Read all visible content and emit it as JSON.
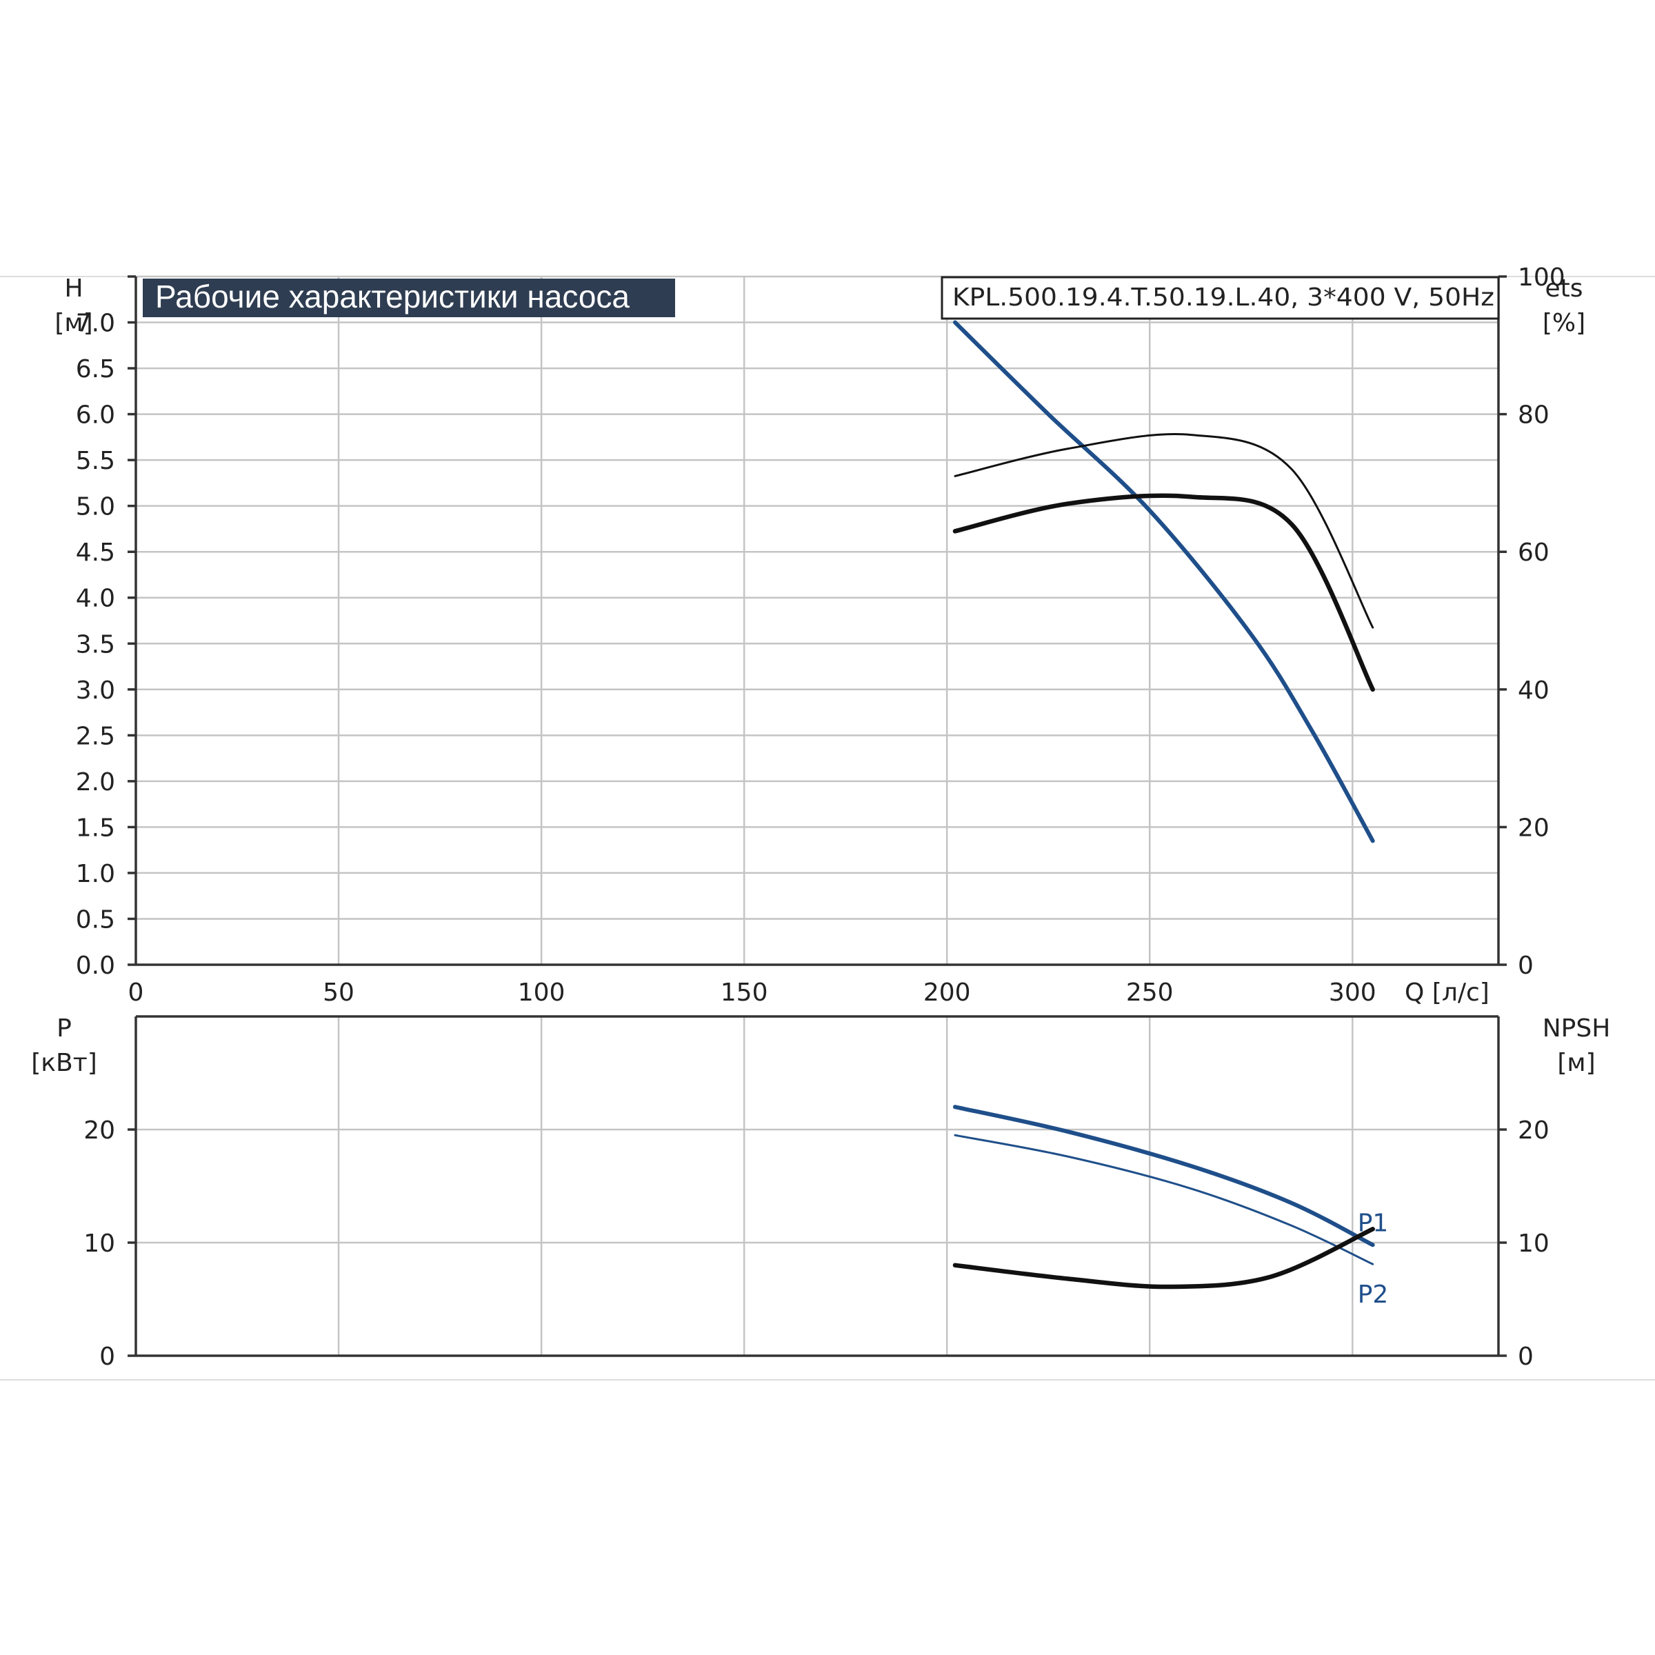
{
  "header": {
    "title": "Рабочие характеристики насоса",
    "model": "KPL.500.19.4.T.50.19.L.40, 3*400 V, 50Hz"
  },
  "colors": {
    "blue": "#1f4f8a",
    "black": "#111111",
    "title_bg": "#2f3d52"
  },
  "chart_data": [
    {
      "type": "line",
      "id": "top",
      "xlabel": "Q [л/с]",
      "ylabel": "H\n[м]",
      "y2label": "ets\n[%]",
      "xlim": [
        0,
        336
      ],
      "ylim": [
        0,
        7.5
      ],
      "y2lim": [
        0,
        100
      ],
      "x_ticks": [
        "0",
        "50",
        "100",
        "150",
        "200",
        "250",
        "300"
      ],
      "y_ticks": [
        "0.0",
        "0.5",
        "1.0",
        "1.5",
        "2.0",
        "2.5",
        "3.0",
        "3.5",
        "4.0",
        "4.5",
        "5.0",
        "5.5",
        "6.0",
        "6.5",
        "7.0"
      ],
      "y2_ticks": [
        "0",
        "20",
        "40",
        "60",
        "80",
        "100"
      ],
      "grid": true,
      "series": [
        {
          "color": "#1f4f8a",
          "width": 6,
          "axis": "y",
          "x": [
            202,
            225,
            250,
            275,
            290,
            305
          ],
          "y": [
            7.0,
            6.0,
            4.95,
            3.6,
            2.55,
            1.35
          ]
        },
        {
          "color": "#111111",
          "width": 3,
          "axis": "y2",
          "x": [
            202,
            230,
            260,
            285,
            305
          ],
          "y": [
            71,
            75,
            77,
            72,
            49
          ]
        },
        {
          "color": "#111111",
          "width": 6.5,
          "axis": "y2",
          "x": [
            202,
            230,
            260,
            285,
            305
          ],
          "y": [
            63,
            67,
            68,
            64,
            40
          ]
        }
      ]
    },
    {
      "type": "line",
      "id": "bottom",
      "xlabel": "",
      "ylabel": "P\n[кВт]",
      "y2label": "NPSH\n[м]",
      "xlim": [
        0,
        336
      ],
      "ylim": [
        0,
        30
      ],
      "y2lim": [
        0,
        30
      ],
      "y_ticks": [
        "0",
        "10",
        "20"
      ],
      "y2_ticks": [
        "0",
        "10",
        "20"
      ],
      "grid": true,
      "series": [
        {
          "name": "P1",
          "color": "#1f4f8a",
          "width": 6,
          "axis": "y",
          "x": [
            202,
            230,
            260,
            285,
            305
          ],
          "y": [
            22.0,
            19.8,
            16.8,
            13.5,
            9.8
          ]
        },
        {
          "name": "P2",
          "color": "#1f4f8a",
          "width": 3,
          "axis": "y",
          "x": [
            202,
            230,
            260,
            285,
            305
          ],
          "y": [
            19.5,
            17.6,
            14.8,
            11.5,
            8.1
          ]
        },
        {
          "color": "#111111",
          "width": 6.5,
          "axis": "y2",
          "x": [
            202,
            230,
            255,
            280,
            305
          ],
          "y": [
            8.0,
            6.8,
            6.1,
            7.0,
            11.2
          ]
        }
      ]
    }
  ]
}
